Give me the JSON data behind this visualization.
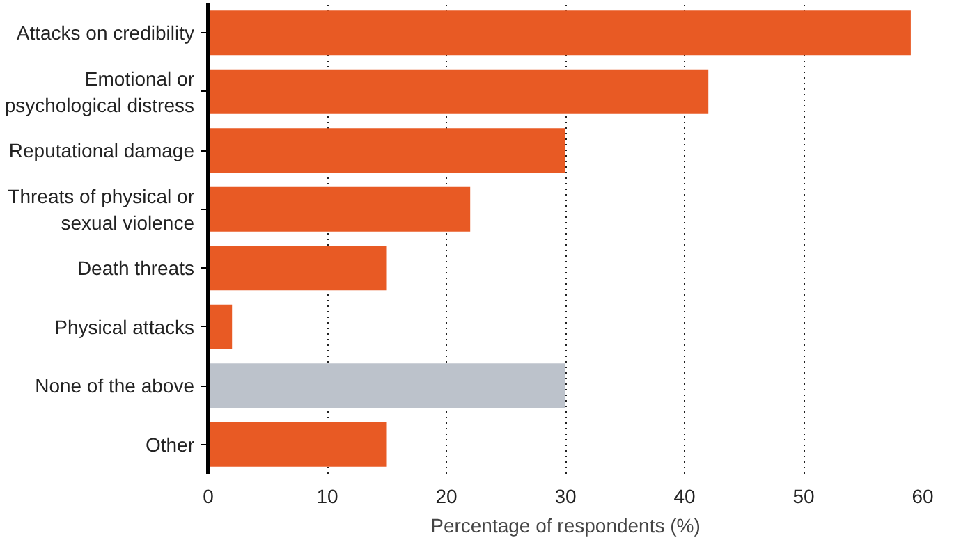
{
  "chart_data": {
    "type": "bar",
    "orientation": "horizontal",
    "xlabel": "Percentage of respondents (%)",
    "categories": [
      "Attacks on credibility",
      "Emotional or\npsychological distress",
      "Reputational damage",
      "Threats of physical or\nsexual violence",
      "Death threats",
      "Physical attacks",
      "None of the above",
      "Other"
    ],
    "values": [
      59,
      42,
      30,
      22,
      15,
      2,
      30,
      15
    ],
    "colors": [
      "#e85a24",
      "#e85a24",
      "#e85a24",
      "#e85a24",
      "#e85a24",
      "#e85a24",
      "#bcc2cb",
      "#e85a24"
    ],
    "xlim": [
      0,
      60
    ],
    "xticks": [
      0,
      10,
      20,
      30,
      40,
      50,
      60
    ],
    "grid": "x"
  }
}
